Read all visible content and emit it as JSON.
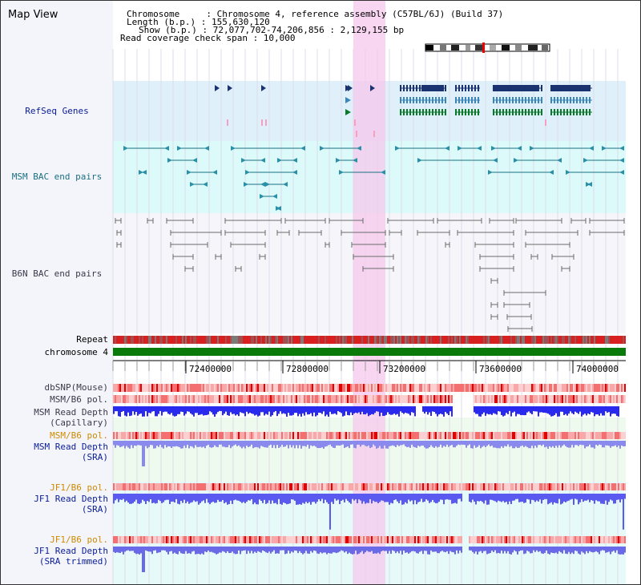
{
  "title": "Map View",
  "info": {
    "line1": "Chromosome     : Chromosome 4, reference assembly (C57BL/6J) (Build 37)",
    "line2": "Length (b.p.) : 155,630,120",
    "line3": "Show (b.p.) : 72,077,702-74,206,856 : 2,129,155 bp",
    "line4": "Read coverage check span : 10,000"
  },
  "tracks": {
    "refseq": "RefSeq Genes",
    "msm_bac": "MSM BAC end pairs",
    "b6n_bac": "B6N BAC end pairs",
    "repeat": "Repeat",
    "chromosome": "chromosome 4",
    "dbsnp": "dbSNP(Mouse)",
    "msm_b6_pol": "MSM/B6 pol.",
    "msm_depth_cap_1": "MSM Read Depth",
    "msm_depth_cap_2": "(Capillary)",
    "msm_b6_pol_2": "MSM/B6 pol.",
    "msm_depth_sra_1": "MSM Read Depth",
    "msm_depth_sra_2": "(SRA)",
    "jf1_b6_pol": "JF1/B6 pol.",
    "jf1_depth_sra_1": "JF1 Read Depth",
    "jf1_depth_sra_2": "(SRA)",
    "jf1_b6_pol_2": "JF1/B6 pol.",
    "jf1_depth_trim_1": "JF1 Read Depth",
    "jf1_depth_trim_2": "(SRA trimmed)"
  },
  "axis": {
    "ticks": [
      "72400000",
      "72800000",
      "73200000",
      "73600000",
      "74000000"
    ]
  },
  "colors": {
    "navy_label": "#0a1e96",
    "teal_label": "#1a7080",
    "grey_label": "#3a3a4a",
    "orange_label": "#d08a00",
    "highlight": "#f6c8ec",
    "refseq_bg": "#dff0fa",
    "msm_bg": "#dcfafa",
    "b6n_bg": "#f6f6fa",
    "chrom_green": "#0a7a0a",
    "depth_blue": "#3a3af0"
  }
}
